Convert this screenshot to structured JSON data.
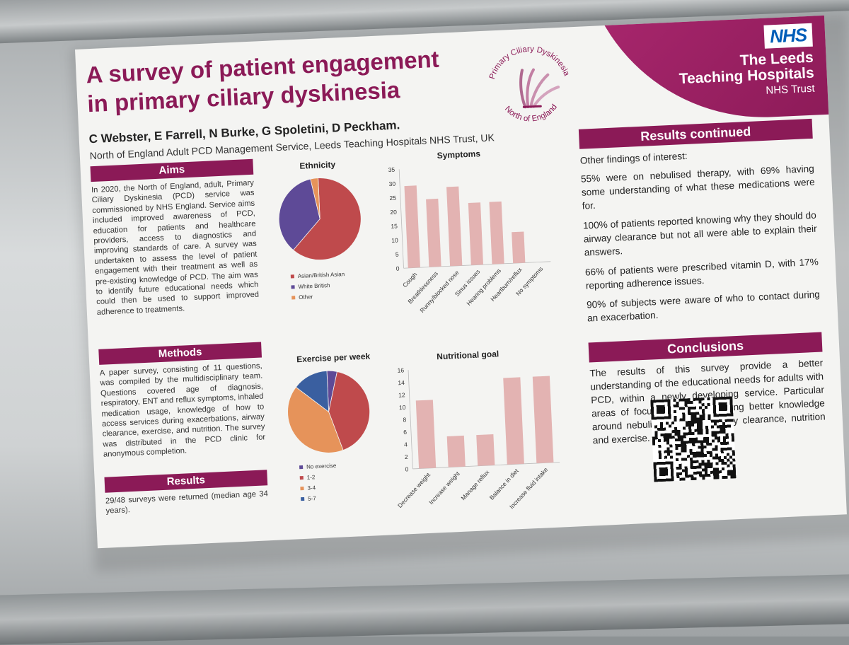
{
  "poster": {
    "title": "A survey of patient engagement in primary ciliary dyskinesia",
    "authors": "C Webster, E Farrell, N Burke, G Spoletini, D Peckham.",
    "affiliation": "North of England Adult PCD Management Service, Leeds Teaching Hospitals NHS Trust, UK",
    "pcd_logo": {
      "arc_top": "Primary Ciliary Dyskinesia",
      "arc_bottom": "North of England"
    },
    "nhs": {
      "logo": "NHS",
      "line1": "The Leeds",
      "line2": "Teaching Hospitals",
      "line3": "NHS Trust"
    },
    "aims": {
      "heading": "Aims",
      "text": "In 2020, the North of England, adult, Primary Ciliary Dyskinesia (PCD) service was commissioned by NHS England. Service aims included improved awareness of PCD, education for patients and healthcare providers, access to diagnostics and improving standards of care. A survey was undertaken to assess the level of patient engagement with their treatment as well as pre-existing knowledge of PCD. The aim was to identify future educational needs which could then be used to support improved adherence to treatments."
    },
    "methods": {
      "heading": "Methods",
      "text": "A paper survey, consisting of 11 questions, was compiled by the multidisciplinary team. Questions covered age of diagnosis, respiratory, ENT and reflux symptoms, inhaled medication usage, knowledge of how to access services during exacerbations, airway clearance, exercise, and nutrition. The survey was distributed in the PCD clinic for anonymous completion."
    },
    "results": {
      "heading": "Results",
      "text": "29/48 surveys were returned (median age 34 years)."
    },
    "results_continued": {
      "heading": "Results continued",
      "intro": "Other findings of interest:",
      "paragraphs": [
        "55% were on nebulised therapy, with 69% having some understanding of what these medications were for.",
        "100% of patients reported knowing why they should do airway clearance but not all were able to explain their answers.",
        "66% of patients were prescribed vitamin D, with 17% reporting adherence issues.",
        "90% of subjects were aware of who to contact during an exacerbation."
      ]
    },
    "conclusions": {
      "heading": "Conclusions",
      "text": "The results of this survey provide a better understanding of the educational needs for adults with PCD, within a newly developing service. Particular areas of focus include developing better knowledge around nebulised therapy, airway clearance, nutrition and exercise."
    },
    "colors": {
      "accent": "#8b1a57",
      "bar": "#e3b3b2"
    }
  },
  "chart_data": [
    {
      "type": "pie",
      "title": "Ethnicity",
      "labels": [
        "Asian/British Asian",
        "White British",
        "Other"
      ],
      "values": [
        62,
        35,
        3
      ],
      "colors": [
        "#bf4a4c",
        "#5e4a97",
        "#e6935a"
      ],
      "legend_position": "bottom"
    },
    {
      "type": "bar",
      "title": "Symptoms",
      "categories": [
        "Cough",
        "Breathlessness",
        "Runny/blocked nose",
        "Sinus issues",
        "Hearing problems",
        "Heartburn/reflux",
        "No symptoms"
      ],
      "values": [
        29,
        24,
        28,
        22,
        22,
        11,
        0
      ],
      "ylim": [
        0,
        35
      ],
      "yticks": [
        0,
        5,
        10,
        15,
        20,
        25,
        30,
        35
      ],
      "color": "#e3b3b2",
      "grid": false
    },
    {
      "type": "pie",
      "title": "Exercise per week",
      "labels": [
        "No exercise",
        "1-2",
        "3-4",
        "5-7"
      ],
      "values": [
        4,
        41,
        41,
        14
      ],
      "colors": [
        "#5e4a97",
        "#bf4a4c",
        "#e6935a",
        "#3a5fa0"
      ],
      "legend_position": "bottom"
    },
    {
      "type": "bar",
      "title": "Nutritional goal",
      "categories": [
        "Decrease weight",
        "Increase weight",
        "Manage reflux",
        "Balance in diet",
        "Increase fluid intake"
      ],
      "values": [
        11,
        5,
        5,
        14,
        14
      ],
      "ylim": [
        0,
        16
      ],
      "yticks": [
        0,
        2,
        4,
        6,
        8,
        10,
        12,
        14,
        16
      ],
      "color": "#e3b3b2",
      "grid": false
    }
  ]
}
